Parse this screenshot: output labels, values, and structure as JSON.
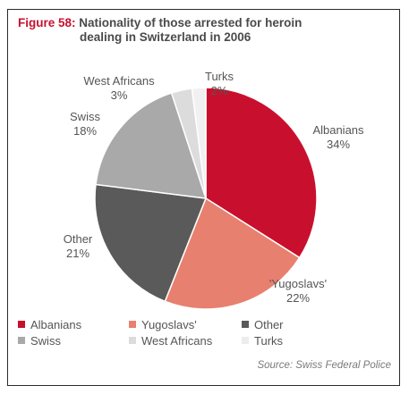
{
  "figure_label": "Figure 58:",
  "title_line1": "Nationality of those arrested for heroin",
  "title_line2": "dealing in Switzerland in 2006",
  "source": "Source: Swiss Federal Police",
  "chart_data": {
    "type": "pie",
    "title": "Nationality of those arrested for heroin dealing in Switzerland in 2006",
    "slices": [
      {
        "name": "Albanians",
        "label": "Albanians",
        "value": 34,
        "value_label": "34%",
        "color": "#c8102e"
      },
      {
        "name": "Yugoslavs'",
        "label": "'Yugoslavs'",
        "value": 22,
        "value_label": "22%",
        "color": "#e8806f"
      },
      {
        "name": "Other",
        "label": "Other",
        "value": 21,
        "value_label": "21%",
        "color": "#5a5a5a"
      },
      {
        "name": "Swiss",
        "label": "Swiss",
        "value": 18,
        "value_label": "18%",
        "color": "#a9a9a9"
      },
      {
        "name": "West Africans",
        "label": "West Africans",
        "value": 3,
        "value_label": "3%",
        "color": "#dcdcdc"
      },
      {
        "name": "Turks",
        "label": "Turks",
        "value": 2,
        "value_label": "2%",
        "color": "#f1f1f1"
      }
    ],
    "start_angle": "top",
    "direction": "clockwise",
    "legend": {
      "placement": "bottom",
      "rows": [
        [
          "Albanians",
          "Yugoslavs'",
          "Other"
        ],
        [
          "Swiss",
          "West Africans",
          "Turks"
        ]
      ]
    }
  }
}
